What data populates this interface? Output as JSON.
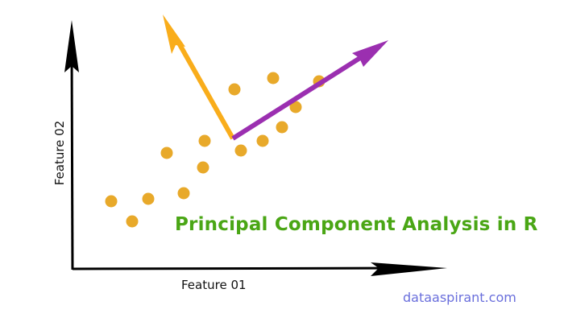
{
  "diagram": {
    "title": "Principal Component Analysis in R",
    "x_axis_label": "Feature 01",
    "y_axis_label": "Feature 02",
    "watermark": "dataaspirant.com",
    "colors": {
      "points": "#e8a92a",
      "pc2_arrow": "#f9ad1b",
      "pc1_arrow": "#9b2fb0",
      "title": "#4aa615",
      "watermark": "#6a6fdc",
      "axes": "#000000"
    }
  }
}
